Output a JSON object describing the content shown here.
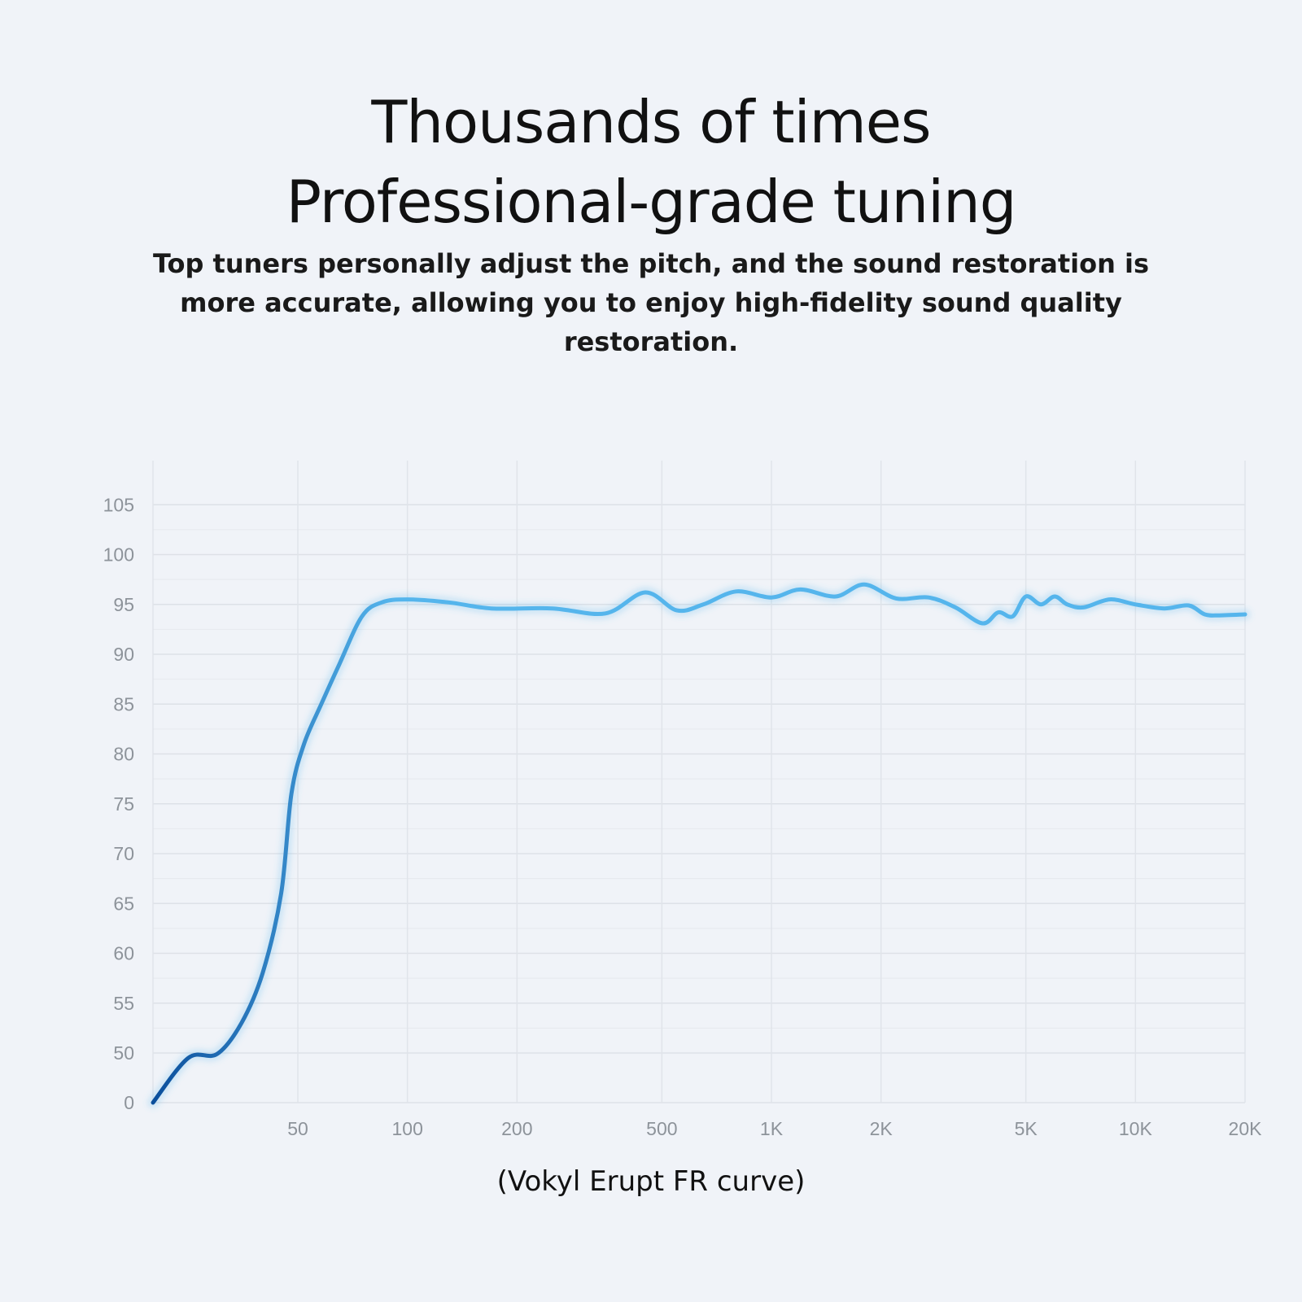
{
  "header": {
    "title_line1": "Thousands of times",
    "title_line2": "Professional-grade tuning",
    "subtitle": "Top tuners personally adjust the pitch, and the sound restoration is more accurate, allowing you to enjoy high-fidelity sound quality restoration."
  },
  "chart_data": {
    "type": "line",
    "title": "",
    "xlabel": "",
    "ylabel": "",
    "x_scale": "log",
    "x_ticks": [
      50,
      100,
      200,
      500,
      1000,
      2000,
      5000,
      10000,
      20000
    ],
    "x_tick_labels": [
      "50",
      "100",
      "200",
      "500",
      "1K",
      "2K",
      "5K",
      "10K",
      "20K"
    ],
    "y_ticks": [
      0,
      50,
      55,
      60,
      65,
      70,
      75,
      80,
      85,
      90,
      95,
      100,
      105
    ],
    "y_tick_labels": [
      "0",
      "50",
      "55",
      "60",
      "65",
      "70",
      "75",
      "80",
      "85",
      "90",
      "95",
      "100",
      "105"
    ],
    "xlim": [
      20,
      20000
    ],
    "ylim_axis_note": "y axis broken between 0 and 50",
    "grid": true,
    "line_color_start": "#0b4f9c",
    "line_color_end": "#55b5ec",
    "series": [
      {
        "x": [
          20,
          25,
          30,
          35,
          40,
          45,
          48,
          52,
          58,
          65,
          75,
          85,
          100,
          130,
          170,
          250,
          350,
          450,
          550,
          650,
          800,
          1000,
          1200,
          1500,
          1800,
          2200,
          2700,
          3200,
          3800,
          4200,
          4600,
          5000,
          5500,
          6000,
          6500,
          7200,
          8500,
          10000,
          12000,
          14000,
          15500,
          17000,
          20000
        ],
        "y": [
          0,
          45,
          49,
          53,
          58,
          66,
          76,
          81,
          85,
          89,
          93.8,
          95.2,
          95.5,
          95.2,
          94.6,
          94.6,
          94.1,
          96.2,
          94.4,
          95.0,
          96.3,
          95.7,
          96.5,
          95.8,
          97.0,
          95.6,
          95.7,
          94.7,
          93.1,
          94.2,
          93.8,
          95.8,
          95.0,
          95.8,
          95.0,
          94.7,
          95.5,
          95.0,
          94.6,
          94.9,
          94.0,
          93.9,
          94.0
        ]
      }
    ]
  },
  "caption": "(Vokyl Erupt FR curve)"
}
